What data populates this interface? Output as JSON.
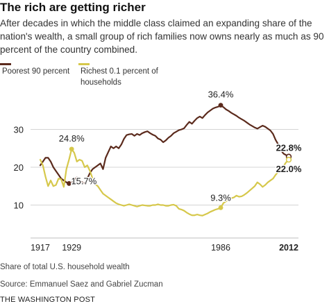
{
  "title": "The rich are getting richer",
  "subtitle": "After decades in which the middle class claimed an expanding share of the nation's wealth, a small group of rich families now owns nearly as much as 90 percent of the country combined.",
  "colors": {
    "poorest": "#5b2a1c",
    "richest": "#d6c84b",
    "grid": "#d4d4d4",
    "axis_text": "#222222"
  },
  "chart_data": {
    "type": "line",
    "x": [
      1917,
      1918,
      1919,
      1920,
      1921,
      1922,
      1923,
      1924,
      1925,
      1926,
      1927,
      1928,
      1929,
      1930,
      1931,
      1932,
      1933,
      1934,
      1935,
      1936,
      1937,
      1938,
      1939,
      1940,
      1941,
      1942,
      1943,
      1944,
      1945,
      1946,
      1947,
      1948,
      1949,
      1950,
      1951,
      1952,
      1953,
      1954,
      1955,
      1956,
      1957,
      1958,
      1959,
      1960,
      1961,
      1962,
      1963,
      1964,
      1965,
      1966,
      1967,
      1968,
      1969,
      1970,
      1971,
      1972,
      1973,
      1974,
      1975,
      1976,
      1977,
      1978,
      1979,
      1980,
      1981,
      1982,
      1983,
      1984,
      1985,
      1986,
      1987,
      1988,
      1989,
      1990,
      1991,
      1992,
      1993,
      1994,
      1995,
      1996,
      1997,
      1998,
      1999,
      2000,
      2001,
      2002,
      2003,
      2004,
      2005,
      2006,
      2007,
      2008,
      2009,
      2010,
      2011,
      2012
    ],
    "series": [
      {
        "name": "Poorest 90 percent",
        "values": [
          20.5,
          21.5,
          22.5,
          22.5,
          21.5,
          20.0,
          19.0,
          18.0,
          17.0,
          16.5,
          16.0,
          15.7,
          15.7,
          16.8,
          17.3,
          16.5,
          16.0,
          15.7,
          17.0,
          18.5,
          19.5,
          20.0,
          20.5,
          21.0,
          19.5,
          22.5,
          24.0,
          25.5,
          25.0,
          25.5,
          25.0,
          26.0,
          27.5,
          28.5,
          28.7,
          28.8,
          28.3,
          28.8,
          28.5,
          29.0,
          29.3,
          29.5,
          29.0,
          28.6,
          28.3,
          27.6,
          27.3,
          26.6,
          27.1,
          27.8,
          28.3,
          29.0,
          29.4,
          29.8,
          30.0,
          30.3,
          31.2,
          32.0,
          31.5,
          32.3,
          33.0,
          33.4,
          33.0,
          33.8,
          34.5,
          35.0,
          35.5,
          35.8,
          36.0,
          36.4,
          35.9,
          35.3,
          34.9,
          34.4,
          34.0,
          33.6,
          33.1,
          32.7,
          32.3,
          31.8,
          31.3,
          30.9,
          30.5,
          30.2,
          30.6,
          31.0,
          30.7,
          30.2,
          29.7,
          28.8,
          27.2,
          26.0,
          24.5,
          23.6,
          23.2,
          22.8
        ]
      },
      {
        "name": "Richest 0.1 percent of households",
        "values": [
          22.0,
          20.5,
          17.5,
          15.0,
          16.5,
          15.0,
          15.3,
          17.0,
          16.8,
          14.8,
          19.5,
          22.0,
          24.8,
          23.8,
          21.5,
          22.0,
          21.7,
          20.0,
          20.5,
          19.0,
          17.0,
          15.5,
          15.0,
          14.0,
          13.0,
          12.5,
          12.0,
          11.5,
          11.0,
          10.5,
          10.2,
          10.0,
          9.8,
          10.0,
          10.2,
          10.0,
          9.8,
          9.6,
          9.8,
          10.0,
          9.9,
          9.8,
          9.8,
          10.0,
          10.0,
          10.2,
          10.0,
          10.0,
          9.8,
          9.8,
          10.0,
          10.1,
          9.8,
          9.0,
          8.8,
          8.5,
          8.0,
          7.6,
          7.3,
          7.3,
          7.5,
          7.3,
          7.2,
          7.5,
          7.8,
          8.2,
          8.5,
          8.8,
          9.0,
          9.3,
          10.5,
          11.0,
          11.5,
          11.8,
          12.0,
          12.5,
          12.2,
          12.3,
          12.7,
          13.2,
          13.8,
          14.4,
          15.0,
          16.0,
          15.5,
          14.8,
          15.3,
          16.0,
          16.5,
          17.0,
          18.0,
          18.8,
          19.5,
          20.3,
          21.3,
          22.0
        ]
      }
    ],
    "annotations": [
      {
        "series": 1,
        "x": 1929,
        "y": 24.8,
        "text": "24.8%"
      },
      {
        "series": 0,
        "x": 1928,
        "y": 15.7,
        "text": "15.7%"
      },
      {
        "series": 0,
        "x": 1986,
        "y": 36.4,
        "text": "36.4%"
      },
      {
        "series": 1,
        "x": 1986,
        "y": 9.3,
        "text": "9.3%"
      },
      {
        "series": 0,
        "x": 2012,
        "y": 22.8,
        "text": "22.8%"
      },
      {
        "series": 1,
        "x": 2012,
        "y": 22.0,
        "text": "22.0%"
      }
    ],
    "yticks": [
      10,
      20,
      30
    ],
    "xtick_labels": [
      "1917",
      "1929",
      "1986",
      "2012"
    ],
    "xlim": [
      1917,
      2012
    ],
    "ylim": [
      0,
      40
    ],
    "grid": true,
    "legend": "top-left",
    "note": "Share of total U.S. household wealth"
  },
  "legend": {
    "poorest_label": "Poorest 90 percent",
    "richest_label": "Richest 0.1 percent of households"
  },
  "footer": {
    "note": "Share of total U.S. household wealth",
    "source": "Source: Emmanuel Saez and Gabriel Zucman",
    "credit": "THE WASHINGTON POST"
  }
}
